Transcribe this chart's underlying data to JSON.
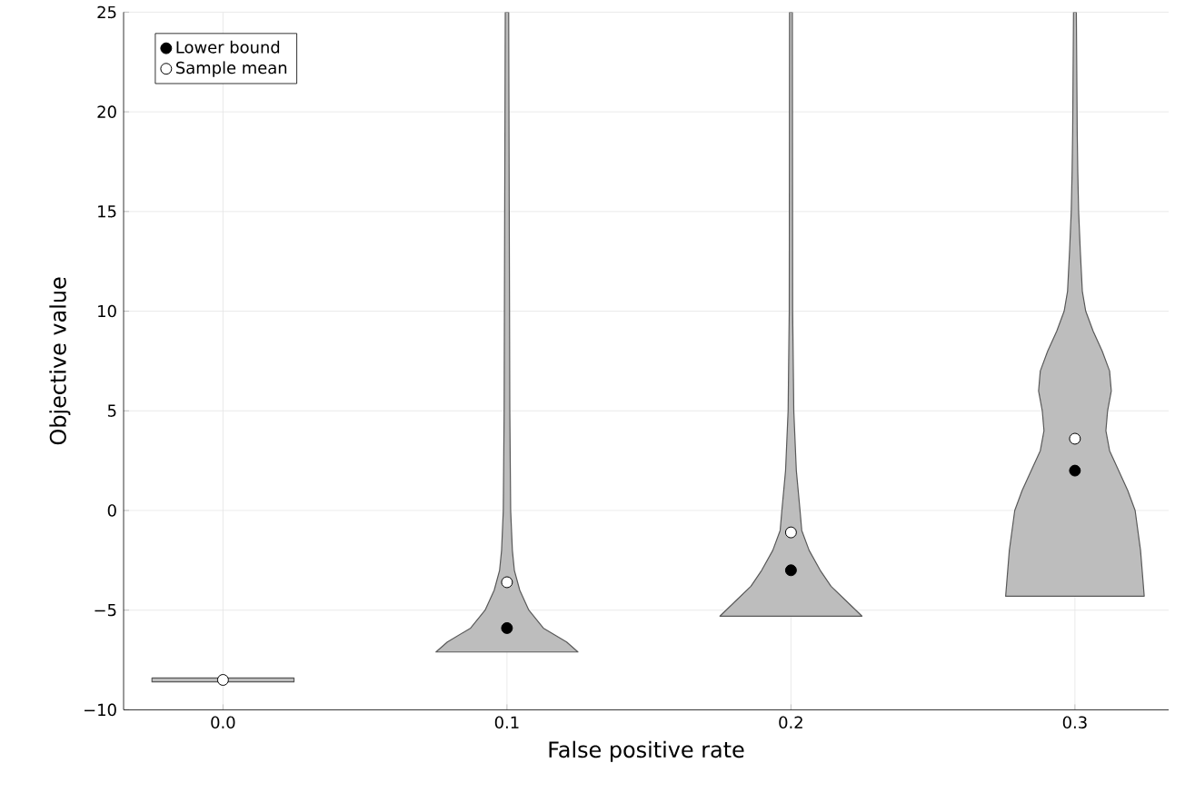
{
  "chart_data": {
    "type": "scatter",
    "xlabel": "False positive rate",
    "ylabel": "Objective value",
    "xlim": [
      -0.035,
      0.333
    ],
    "ylim": [
      -10,
      25
    ],
    "xticks": [
      {
        "value": 0,
        "label": "0.0"
      },
      {
        "value": 0.1,
        "label": "0.1"
      },
      {
        "value": 0.2,
        "label": "0.2"
      },
      {
        "value": 0.3,
        "label": "0.3"
      }
    ],
    "yticks": [
      {
        "value": -10,
        "label": "−10"
      },
      {
        "value": -5,
        "label": "−5"
      },
      0,
      5,
      10,
      15,
      20,
      25
    ],
    "grid": true,
    "legend": "top left",
    "series": [
      {
        "type": "area",
        "marker": "none",
        "color": "#bdbdbd",
        "x": [
          -0.025,
          0.025,
          0.025,
          -0.025
        ],
        "values": [
          -8.6,
          -8.6,
          -8.4,
          -8.4
        ]
      },
      {
        "type": "area",
        "marker": "none",
        "color": "#bdbdbd",
        "x": [
          0.125,
          0.121,
          0.1128,
          0.1077,
          0.1045,
          0.1026,
          0.1019,
          0.1013,
          0.101,
          0.1006,
          0.0994,
          0.099,
          0.0987,
          0.0981,
          0.0974,
          0.0955,
          0.0923,
          0.0872,
          0.079,
          0.075
        ],
        "values": [
          -7.1,
          -6.6,
          -5.9,
          -5,
          -4,
          -3,
          -2,
          0,
          5,
          25,
          25,
          5,
          0,
          -2,
          -3,
          -4,
          -5,
          -5.9,
          -6.6,
          -7.1
        ]
      },
      {
        "type": "area",
        "marker": "none",
        "color": "#bdbdbd",
        "x": [
          0.225,
          0.2192,
          0.2141,
          0.2103,
          0.2064,
          0.2038,
          0.2032,
          0.2019,
          0.201,
          0.2006,
          0.2005,
          0.1995,
          0.1994,
          0.199,
          0.1981,
          0.1968,
          0.1962,
          0.1936,
          0.1897,
          0.1859,
          0.1808,
          0.175
        ],
        "values": [
          -5.3,
          -4.5,
          -3.8,
          -3,
          -2,
          -1,
          0,
          2,
          5,
          10,
          25,
          25,
          10,
          5,
          2,
          0,
          -1,
          -2,
          -3,
          -3.8,
          -4.5,
          -5.3
        ]
      },
      {
        "type": "area",
        "marker": "none",
        "color": "#bdbdbd",
        "x": [
          0.3244,
          0.3231,
          0.3212,
          0.3186,
          0.3154,
          0.3122,
          0.3109,
          0.3115,
          0.3128,
          0.3122,
          0.3096,
          0.3064,
          0.3038,
          0.3026,
          0.3019,
          0.3013,
          0.301,
          0.3008,
          0.3005,
          0.2995,
          0.2992,
          0.299,
          0.2987,
          0.2981,
          0.2974,
          0.2962,
          0.2936,
          0.2904,
          0.2878,
          0.2872,
          0.2885,
          0.2891,
          0.2878,
          0.2846,
          0.2814,
          0.2788,
          0.2769,
          0.2756
        ],
        "values": [
          -4.3,
          -2,
          0,
          1,
          2,
          3,
          4,
          5,
          6,
          7,
          8,
          9,
          10,
          11,
          13,
          15,
          17,
          19,
          25,
          25,
          19,
          17,
          15,
          13,
          11,
          10,
          9,
          8,
          7,
          6,
          5,
          4,
          3,
          2,
          1,
          0,
          -2,
          -4.3
        ]
      },
      {
        "name": "Lower bound",
        "marker": "circle",
        "color": "#000000",
        "x": [
          0.1,
          0.2,
          0.3
        ],
        "values": [
          -5.9,
          -3.0,
          2.0
        ]
      },
      {
        "name": "Sample mean",
        "marker": "circle",
        "color": "#ffffff",
        "x": [
          0,
          0.1,
          0.2,
          0.3
        ],
        "values": [
          -8.5,
          -3.6,
          -1.1,
          3.6
        ]
      }
    ]
  }
}
